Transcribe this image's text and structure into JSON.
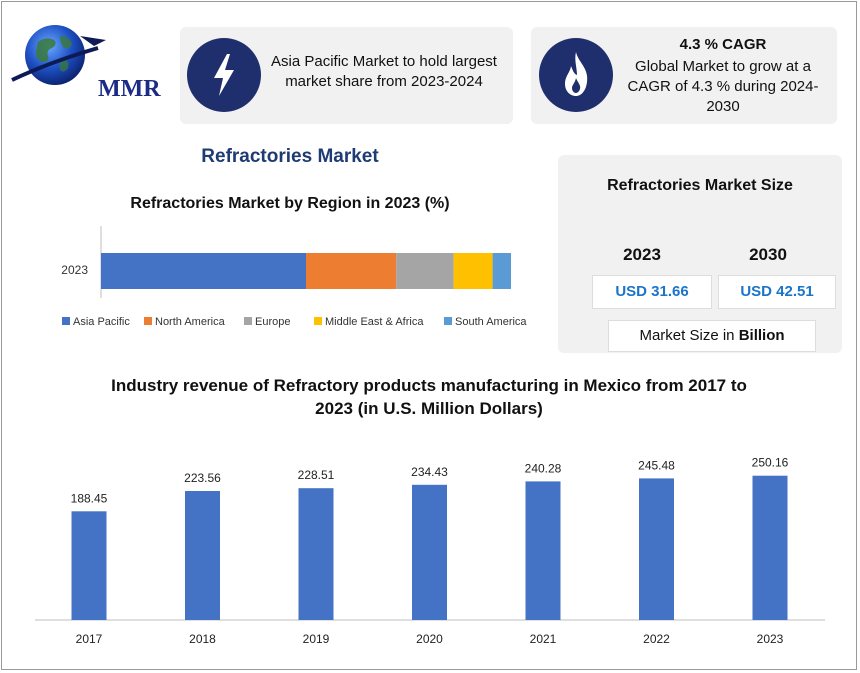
{
  "brand": {
    "logo_text": "MMR"
  },
  "cards": {
    "asia": {
      "text": "Asia Pacific Market to hold largest market share from 2023-2024",
      "icon": "lightning-icon"
    },
    "cagr": {
      "title": "4.3 % CAGR",
      "text": "Global Market to grow at a CAGR of 4.3 % during 2024-2030",
      "icon": "flame-icon"
    }
  },
  "main_title": "Refractories Market",
  "market_size": {
    "title": "Refractories Market Size",
    "year_a": "2023",
    "year_b": "2030",
    "value_a": "USD 31.66",
    "value_b": "USD 42.51",
    "note_prefix": "Market Size in",
    "note_unit": "Billion"
  },
  "colors": {
    "navy": "#1f2f6d",
    "title_blue": "#1f3b73",
    "value_blue": "#1a74c9",
    "bar_blue": "#4472c4"
  },
  "chart_data": [
    {
      "type": "bar",
      "orientation": "horizontal",
      "stacked": true,
      "title": "Refractories Market by Region in 2023 (%)",
      "categories": [
        "2023"
      ],
      "series": [
        {
          "name": "Asia Pacific",
          "values": [
            50
          ],
          "color": "#4472c4"
        },
        {
          "name": "North America",
          "values": [
            22
          ],
          "color": "#ed7d31"
        },
        {
          "name": "Europe",
          "values": [
            14
          ],
          "color": "#a5a5a5"
        },
        {
          "name": "Middle East & Africa",
          "values": [
            9.5
          ],
          "color": "#ffc000"
        },
        {
          "name": "South America",
          "values": [
            4.5
          ],
          "color": "#5b9bd5"
        }
      ],
      "legend": "bottom"
    },
    {
      "type": "bar",
      "title": "Industry revenue of Refractory products manufacturing in Mexico from 2017 to 2023 (in U.S. Million Dollars)",
      "categories": [
        "2017",
        "2018",
        "2019",
        "2020",
        "2021",
        "2022",
        "2023"
      ],
      "values": [
        188.45,
        223.56,
        228.51,
        234.43,
        240.28,
        245.48,
        250.16
      ],
      "value_labels": [
        "188.45",
        "223.56",
        "228.51",
        "234.43",
        "240.28",
        "245.48",
        "250.16"
      ],
      "ylim": [
        0,
        300
      ],
      "grid": false,
      "color": "#4472c4"
    }
  ]
}
